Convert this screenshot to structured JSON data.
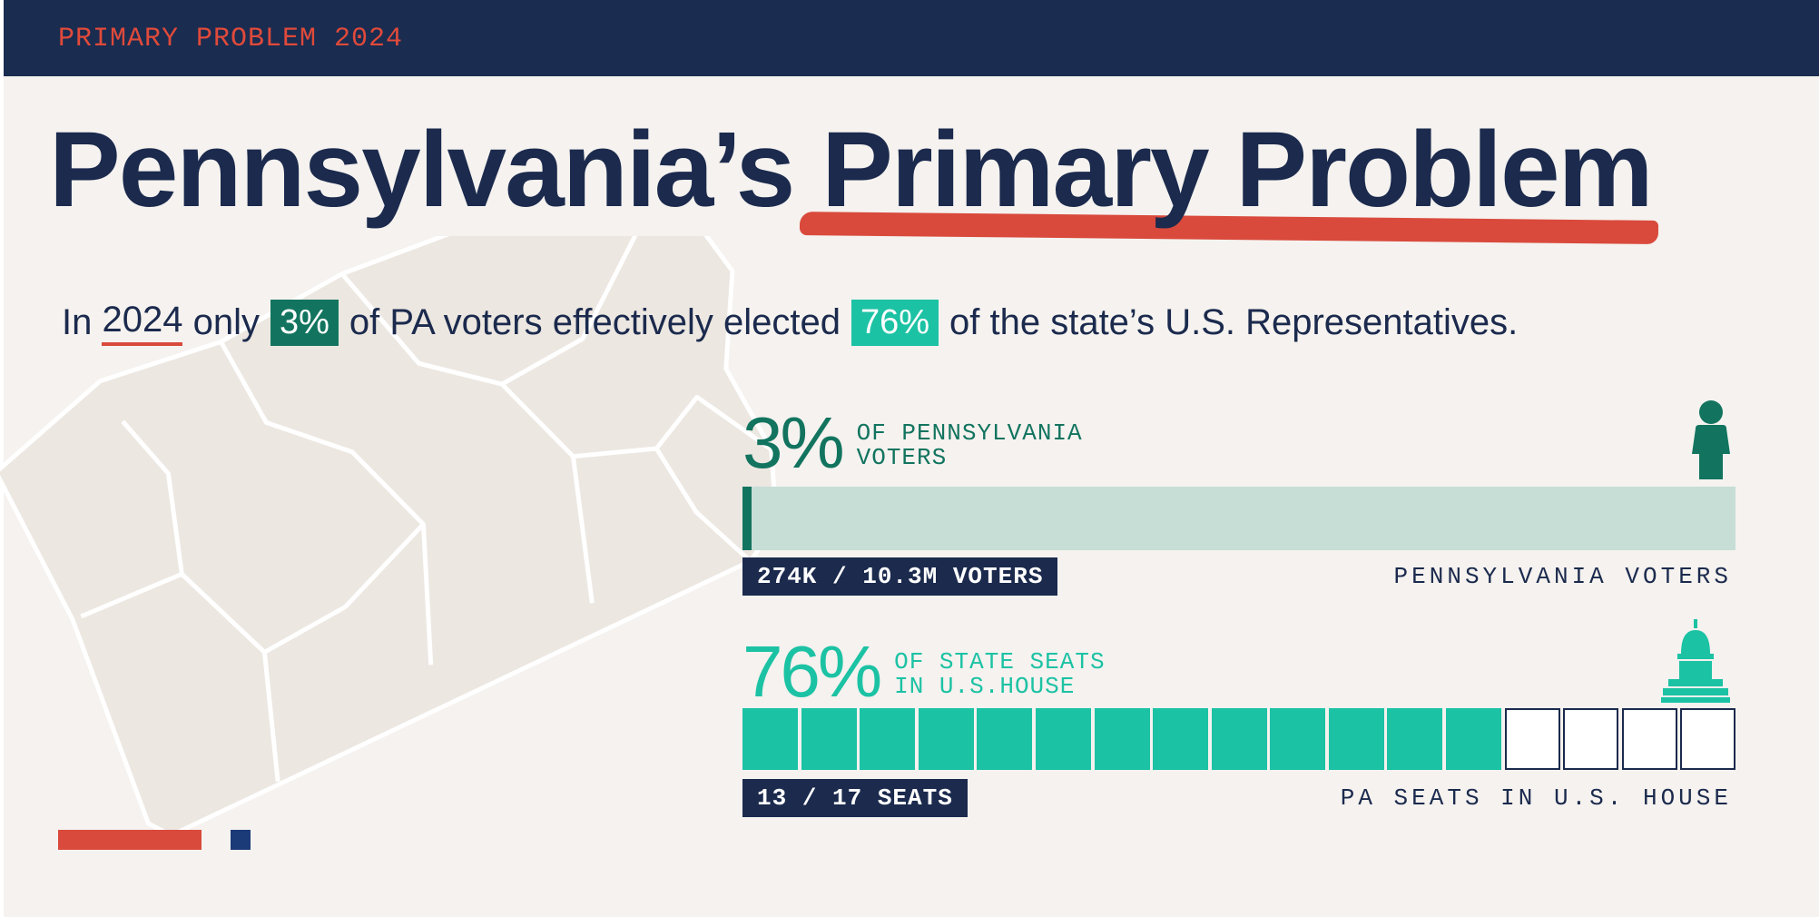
{
  "header": {
    "eyebrow": "PRIMARY PROBLEM 2024"
  },
  "title": {
    "part1": "Pennsylvania’s",
    "part2": "Primary Problem"
  },
  "subtitle": {
    "pre": "In",
    "year": "2024",
    "mid1": "only",
    "pct_voters": "3%",
    "mid2": "of PA voters effectively elected",
    "pct_seats": "76%",
    "post": "of the state’s U.S. Representatives."
  },
  "colors": {
    "navy": "#1b2a4d",
    "red": "#d94a3c",
    "dark_green": "#12745f",
    "teal": "#1cc2a4",
    "light_green": "#c7ded6",
    "map_fill": "#ece7e1"
  },
  "chart_data": [
    {
      "type": "bar",
      "name": "voters",
      "title": "3%",
      "caption": "OF PENNSYLVANIA\nVOTERS",
      "value": 0.03,
      "numerator_label": "274K",
      "denominator_label": "10.3M",
      "tag": "274K / 10.3M VOTERS",
      "total_label": "PENNSYLVANIA VOTERS",
      "icon": "person-icon"
    },
    {
      "type": "bar",
      "name": "seats",
      "title": "76%",
      "caption": "OF STATE SEATS\nIN U.S.HOUSE",
      "filled": 13,
      "total": 17,
      "tag": "13 / 17 SEATS",
      "total_label": "PA SEATS IN U.S. HOUSE",
      "icon": "capitol-icon"
    }
  ]
}
